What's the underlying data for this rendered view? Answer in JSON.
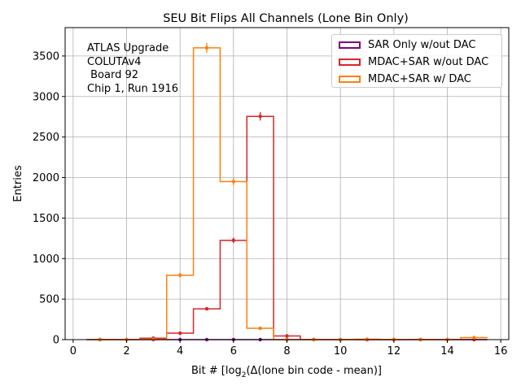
{
  "chart_data": {
    "type": "histogram-step",
    "title": "SEU Bit Flips All Channels (Lone Bin Only)",
    "xlabel_parts": [
      "Bit # [log",
      "2",
      "(Δ(lone bin code - mean)]"
    ],
    "ylabel": "Entries",
    "xlim": [
      -0.3,
      16.3
    ],
    "ylim": [
      0,
      3850
    ],
    "xticks": [
      0,
      2,
      4,
      6,
      8,
      10,
      12,
      14,
      16
    ],
    "yticks": [
      0,
      500,
      1000,
      1500,
      2000,
      2500,
      3000,
      3500
    ],
    "grid": true,
    "legend_position": "top-right",
    "bins": [
      1,
      2,
      3,
      4,
      5,
      6,
      7,
      8,
      9,
      10,
      11,
      12,
      13,
      14,
      15
    ],
    "series": [
      {
        "name": "SAR Only w/out DAC",
        "color": "#800080",
        "values": [
          0,
          0,
          0,
          0,
          0,
          0,
          0,
          0,
          0,
          0,
          0,
          0,
          0,
          0,
          0
        ]
      },
      {
        "name": "MDAC+SAR w/out DAC",
        "color": "#d62728",
        "values": [
          0,
          0,
          18,
          80,
          380,
          1225,
          2755,
          45,
          0,
          0,
          0,
          0,
          0,
          0,
          0
        ]
      },
      {
        "name": "MDAC+SAR w/ DAC",
        "color": "#ff7f0e",
        "values": [
          0,
          0,
          5,
          795,
          3600,
          1950,
          140,
          0,
          0,
          0,
          5,
          3,
          0,
          0,
          25
        ]
      }
    ]
  },
  "annotation": {
    "lines": [
      "ATLAS Upgrade",
      "COLUTAv4",
      " Board 92",
      "Chip 1, Run 1916"
    ]
  }
}
